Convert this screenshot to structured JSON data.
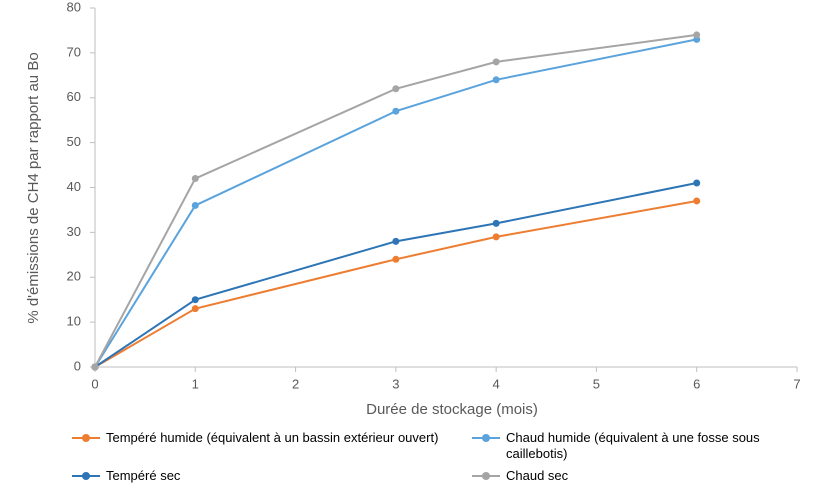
{
  "chart_data": {
    "type": "line",
    "xlabel": "Durée de stockage (mois)",
    "ylabel": "% d'émissions de CH4 par rapport au Bo",
    "x": [
      0,
      1,
      3,
      4,
      6
    ],
    "series": [
      {
        "name": "Tempéré humide (équivalent à un bassin extérieur ouvert)",
        "color": "#ed7d31",
        "values": [
          0,
          13,
          24,
          29,
          37
        ]
      },
      {
        "name": "Chaud humide (équivalent à une fosse sous caillebotis)",
        "color": "#5ba3dc",
        "values": [
          0,
          36,
          57,
          64,
          73
        ]
      },
      {
        "name": "Tempéré sec",
        "color": "#2e75b6",
        "values": [
          0,
          15,
          28,
          32,
          41
        ]
      },
      {
        "name": "Chaud sec",
        "color": "#a5a5a5",
        "values": [
          0,
          42,
          62,
          68,
          74
        ]
      }
    ],
    "xlim": [
      0,
      7
    ],
    "xticks": [
      0,
      1,
      2,
      3,
      4,
      5,
      6,
      7
    ],
    "ylim": [
      0,
      80
    ],
    "yticks": [
      0,
      10,
      20,
      30,
      40,
      50,
      60,
      70,
      80
    ]
  }
}
